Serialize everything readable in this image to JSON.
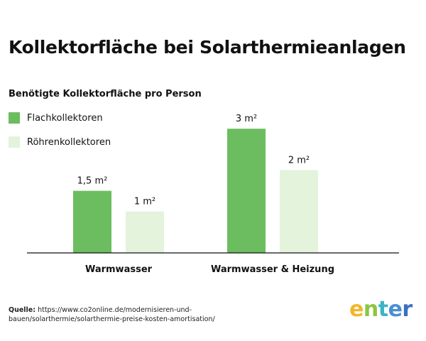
{
  "title": "Kollektorfläche bei Solarthermieanlagen",
  "source": {
    "label": "Quelle:",
    "text": "https://www.co2online.de/modernisieren-und-bauen/solarthermie/solarthermie-preise-kosten-amortisation/"
  },
  "logo": {
    "letters": [
      "e",
      "n",
      "t",
      "e",
      "r"
    ],
    "colors": [
      "#f2b62d",
      "#8cc63f",
      "#3cb4c8",
      "#4a8fd4",
      "#3d6fc1"
    ]
  },
  "colors": {
    "flach": "#6cbd5f",
    "roehren": "#e3f3dc",
    "axis": "#111111"
  },
  "chart_data": {
    "type": "bar",
    "title": "Benötigte Kollektorfläche pro Person",
    "categories": [
      "Warmwasser",
      "Warmwasser & Heizung"
    ],
    "series": [
      {
        "name": "Flachkollektoren",
        "values": [
          1.5,
          3
        ],
        "labels": [
          "1,5 m²",
          "3 m²"
        ],
        "color": "#6cbd5f"
      },
      {
        "name": "Röhrenkollektoren",
        "values": [
          1,
          2
        ],
        "labels": [
          "1 m²",
          "2 m²"
        ],
        "color": "#e3f3dc"
      }
    ],
    "ylim": [
      0,
      3.45
    ],
    "grid": false,
    "legend": "top-left"
  }
}
